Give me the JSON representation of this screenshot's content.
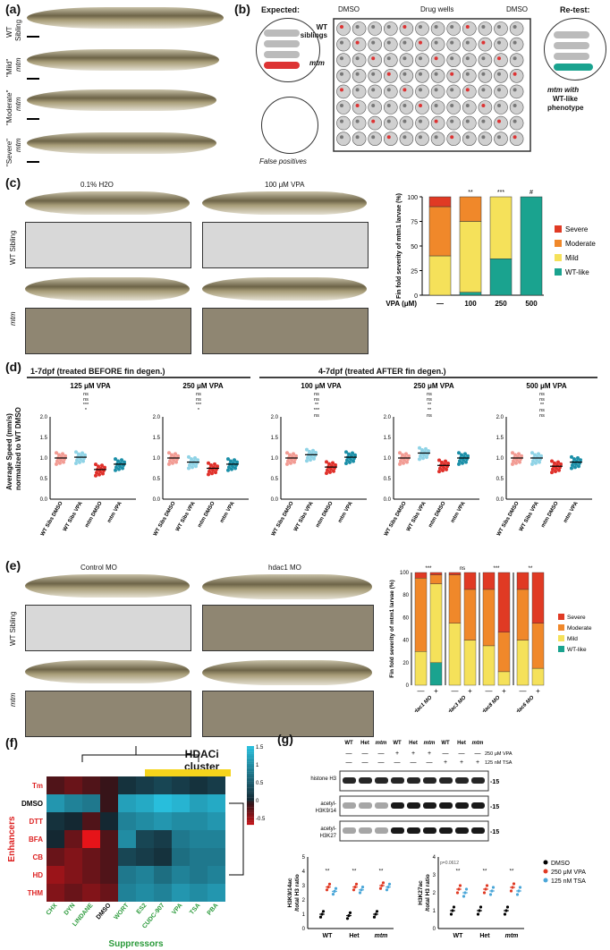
{
  "panels": {
    "a": {
      "label": "(a)",
      "rows": [
        {
          "line1": "WT",
          "line2": "Sibling"
        },
        {
          "line1": "\"Mild\"",
          "line2": "mtm"
        },
        {
          "line1": "\"Moderate\"",
          "line2": "mtm"
        },
        {
          "line1": "\"Severe\"",
          "line2": "mtm"
        }
      ]
    },
    "b": {
      "label": "(b)",
      "expected": "Expected:",
      "wt_siblings": "WT siblings",
      "mtm": "mtm",
      "dmso_left": "DMSO",
      "drug_wells": "Drug wells",
      "dmso_right": "DMSO",
      "retest": "Re-test:",
      "mtm_with": "mtm with",
      "wt_like": "WT-like",
      "phenotype": "phenotype",
      "false_positives": "False positives"
    },
    "c": {
      "label": "(c)",
      "col1": "0.1% H2O",
      "col2": "100 μM VPA",
      "row1": "WT Sibling",
      "row2": "mtm"
    },
    "d": {
      "label": "(d)",
      "group1": "1-7dpf (treated BEFORE fin degen.)",
      "group2": "4-7dpf (treated AFTER fin degen.)",
      "ylabel1": "Average Speed (mm/s)",
      "ylabel2": "normalized to WT DMSO"
    },
    "e": {
      "label": "(e)",
      "col1": "Control MO",
      "col2": "hdac1 MO",
      "row1": "WT Sibling",
      "row2": "mtm"
    },
    "f": {
      "label": "(f)",
      "cluster": "HDACi",
      "cluster2": "cluster",
      "enhancers_label": "Enhancers",
      "suppressors_label": "Suppressors"
    },
    "g": {
      "label": "(g)",
      "band1": "histone H3",
      "band2a": "acetyl-",
      "band2b": "H3K9/14",
      "band3a": "acetyl-",
      "band3b": "H3K27",
      "mw": "-15",
      "vpa_label": "250 μM VPA",
      "tsa_label": "125 nM TSA",
      "lane_headers": [
        "WT",
        "Het",
        "mtm",
        "WT",
        "Het",
        "mtm",
        "WT",
        "Het",
        "mtm"
      ],
      "vpa_row": [
        "—",
        "—",
        "—",
        "+",
        "+",
        "+",
        "—",
        "—",
        "—"
      ],
      "tsa_row": [
        "—",
        "—",
        "—",
        "—",
        "—",
        "—",
        "+",
        "+",
        "+"
      ],
      "ylabel_left1": "H3K9/14ac",
      "ylabel_left2": "/total H3 ratio",
      "ylabel_right1": "H3K27ac",
      "ylabel_right2": "/total H3 ratio",
      "p_note": "p=0.0612",
      "legend": [
        "DMSO",
        "250 μM VPA",
        "125 nM TSA"
      ],
      "xcats": [
        "WT",
        "Het",
        "mtm"
      ]
    }
  },
  "colors": {
    "severe": "#e03a24",
    "moderate": "#f0882a",
    "mild": "#f5e15a",
    "wtlike": "#1aa38f",
    "wt_dot": "#f29b93",
    "wt_vpa_dot": "#8fd3e6",
    "mtm_dot": "#e0302a",
    "mtm_vpa_dot": "#1b8fa8"
  },
  "chart_data": [
    {
      "type": "bar",
      "title": "",
      "ylabel": "Fin fold severity of mtm1 larvae (%)",
      "xlabel": "VPA (μM)",
      "categories": [
        "—",
        "100",
        "250",
        "500"
      ],
      "ylim": [
        0,
        100
      ],
      "yticks": [
        0,
        25,
        50,
        75,
        100
      ],
      "annotations": [
        "",
        "**",
        "***",
        "#"
      ],
      "legend": [
        "Severe",
        "Moderate",
        "Mild",
        "WT-like"
      ],
      "series": [
        {
          "name": "WT-like",
          "values": [
            0,
            3,
            37,
            100
          ]
        },
        {
          "name": "Mild",
          "values": [
            40,
            72,
            63,
            0
          ]
        },
        {
          "name": "Moderate",
          "values": [
            50,
            25,
            0,
            0
          ]
        },
        {
          "name": "Severe",
          "values": [
            10,
            0,
            0,
            0
          ]
        }
      ]
    },
    {
      "type": "bar",
      "ylabel": "Fin fold severity of mtm1 larvae (%)",
      "ylim": [
        0,
        100
      ],
      "yticks": [
        0,
        20,
        40,
        60,
        80,
        100
      ],
      "groups": [
        "hdac1 MO",
        "hdac3 MO",
        "hdac8 MO",
        "hdac6 MO"
      ],
      "categories": [
        "—",
        "+",
        "—",
        "+",
        "—",
        "+",
        "—",
        "+"
      ],
      "annotations": [
        "***",
        "ns",
        "***",
        "**"
      ],
      "legend": [
        "Severe",
        "Moderate",
        "Mild",
        "WT-like"
      ],
      "series": [
        {
          "name": "WT-like",
          "values": [
            0,
            20,
            0,
            0,
            0,
            0,
            0,
            0
          ]
        },
        {
          "name": "Mild",
          "values": [
            30,
            70,
            55,
            40,
            35,
            12,
            40,
            15
          ]
        },
        {
          "name": "Moderate",
          "values": [
            65,
            8,
            43,
            45,
            50,
            35,
            45,
            40
          ]
        },
        {
          "name": "Severe",
          "values": [
            5,
            2,
            2,
            15,
            15,
            53,
            15,
            45
          ]
        }
      ]
    },
    {
      "type": "scatter",
      "subplots": [
        {
          "title": "125 μM VPA",
          "means": [
            1.0,
            1.02,
            0.72,
            0.85
          ],
          "sig": [
            "ns",
            "ns",
            "***",
            "*"
          ]
        },
        {
          "title": "250 μM VPA",
          "means": [
            1.0,
            0.9,
            0.75,
            0.85
          ],
          "sig": [
            "ns",
            "ns",
            "***",
            "*"
          ]
        },
        {
          "title": "100 μM VPA",
          "means": [
            1.0,
            1.08,
            0.78,
            1.02
          ],
          "sig": [
            "ns",
            "ns",
            "**",
            "***",
            "ns"
          ]
        },
        {
          "title": "250 μM VPA",
          "means": [
            1.0,
            1.12,
            0.82,
            1.0
          ],
          "sig": [
            "ns",
            "ns",
            "**",
            "**",
            "ns"
          ]
        },
        {
          "title": "500 μM VPA",
          "means": [
            1.0,
            1.0,
            0.8,
            0.9
          ],
          "sig": [
            "ns",
            "ns",
            "**",
            "ns",
            "ns"
          ]
        }
      ],
      "categories": [
        "WT Sibs DMSO",
        "WT Sibs VPA",
        "mtm DMSO",
        "mtm VPA"
      ],
      "ylim": [
        0,
        2.0
      ],
      "yticks": [
        0,
        0.5,
        1.0,
        1.5,
        2.0
      ]
    },
    {
      "type": "heatmap",
      "rows": [
        "Tm",
        "DMSO",
        "DTT",
        "BFA",
        "CB",
        "HD",
        "THM"
      ],
      "cols": [
        "CHX",
        "DYN",
        "LINDANE",
        "DMSO",
        "WORT",
        "ES2",
        "CUDC-907",
        "VPA",
        "TSA",
        "PBA"
      ],
      "scale": [
        -0.5,
        0,
        0.5,
        1.0,
        1.5
      ],
      "values": [
        [
          -0.2,
          -0.3,
          -0.2,
          -0.1,
          0.1,
          0.2,
          0.3,
          0.2,
          0.1,
          0.2
        ],
        [
          1.1,
          0.9,
          0.8,
          -0.1,
          1.2,
          1.3,
          1.5,
          1.4,
          1.2,
          1.3
        ],
        [
          0.1,
          0.0,
          -0.2,
          0.0,
          0.9,
          1.0,
          1.1,
          1.0,
          1.0,
          1.1
        ],
        [
          0.0,
          -0.3,
          -0.8,
          -0.2,
          1.0,
          0.3,
          0.2,
          0.8,
          0.9,
          0.9
        ],
        [
          -0.3,
          -0.4,
          -0.3,
          -0.2,
          0.3,
          0.2,
          0.1,
          0.7,
          0.8,
          0.8
        ],
        [
          -0.5,
          -0.4,
          -0.3,
          -0.2,
          0.8,
          0.9,
          0.7,
          0.9,
          0.8,
          0.9
        ],
        [
          -0.4,
          -0.3,
          -0.4,
          -0.3,
          0.9,
          1.0,
          0.9,
          1.1,
          1.0,
          1.1
        ]
      ]
    },
    {
      "type": "scatter",
      "subplots": [
        {
          "ylabel": "H3K9/14ac /total H3 ratio",
          "ylim": [
            0,
            5
          ],
          "yticks": [
            0,
            1,
            2,
            3,
            4,
            5
          ]
        },
        {
          "ylabel": "H3K27ac /total H3 ratio",
          "ylim": [
            0,
            4
          ],
          "yticks": [
            0,
            1,
            2,
            3,
            4
          ]
        }
      ],
      "categories": [
        "WT",
        "Het",
        "mtm"
      ],
      "series": [
        {
          "name": "DMSO",
          "values_left": [
            1.0,
            0.9,
            1.0
          ],
          "values_right": [
            1.0,
            1.0,
            1.0
          ]
        },
        {
          "name": "250 μM VPA",
          "values_left": [
            2.9,
            2.9,
            3.0
          ],
          "values_right": [
            2.2,
            2.2,
            2.3
          ]
        },
        {
          "name": "125 nM TSA",
          "values_left": [
            2.6,
            2.7,
            2.9
          ],
          "values_right": [
            2.0,
            2.1,
            2.1
          ]
        }
      ]
    }
  ]
}
